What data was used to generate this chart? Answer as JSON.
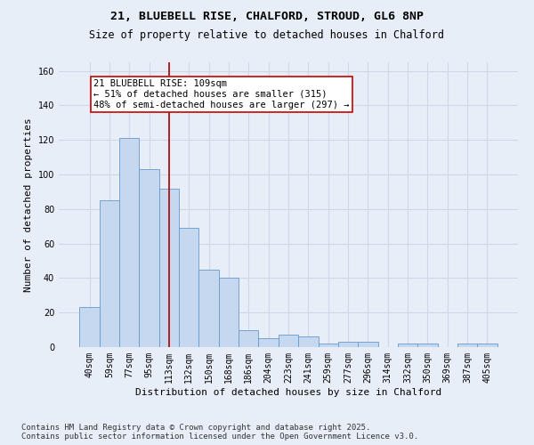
{
  "title1": "21, BLUEBELL RISE, CHALFORD, STROUD, GL6 8NP",
  "title2": "Size of property relative to detached houses in Chalford",
  "xlabel": "Distribution of detached houses by size in Chalford",
  "ylabel": "Number of detached properties",
  "categories": [
    "40sqm",
    "59sqm",
    "77sqm",
    "95sqm",
    "113sqm",
    "132sqm",
    "150sqm",
    "168sqm",
    "186sqm",
    "204sqm",
    "223sqm",
    "241sqm",
    "259sqm",
    "277sqm",
    "296sqm",
    "314sqm",
    "332sqm",
    "350sqm",
    "369sqm",
    "387sqm",
    "405sqm"
  ],
  "values": [
    23,
    85,
    121,
    103,
    92,
    69,
    45,
    40,
    10,
    5,
    7,
    6,
    2,
    3,
    3,
    0,
    2,
    2,
    0,
    2,
    2
  ],
  "bar_color": "#c5d8f0",
  "bar_edge_color": "#6699cc",
  "vline_x": 4,
  "vline_color": "#aa0000",
  "annotation_text": "21 BLUEBELL RISE: 109sqm\n← 51% of detached houses are smaller (315)\n48% of semi-detached houses are larger (297) →",
  "annotation_box_color": "white",
  "annotation_box_edge_color": "#cc0000",
  "ylim": [
    0,
    165
  ],
  "yticks": [
    0,
    20,
    40,
    60,
    80,
    100,
    120,
    140,
    160
  ],
  "bg_color": "#e8eef8",
  "grid_color": "#d0d8e8",
  "footer_text": "Contains HM Land Registry data © Crown copyright and database right 2025.\nContains public sector information licensed under the Open Government Licence v3.0.",
  "title_fontsize": 9.5,
  "subtitle_fontsize": 8.5,
  "axis_label_fontsize": 8,
  "tick_fontsize": 7,
  "footer_fontsize": 6.5,
  "annot_fontsize": 7.5
}
